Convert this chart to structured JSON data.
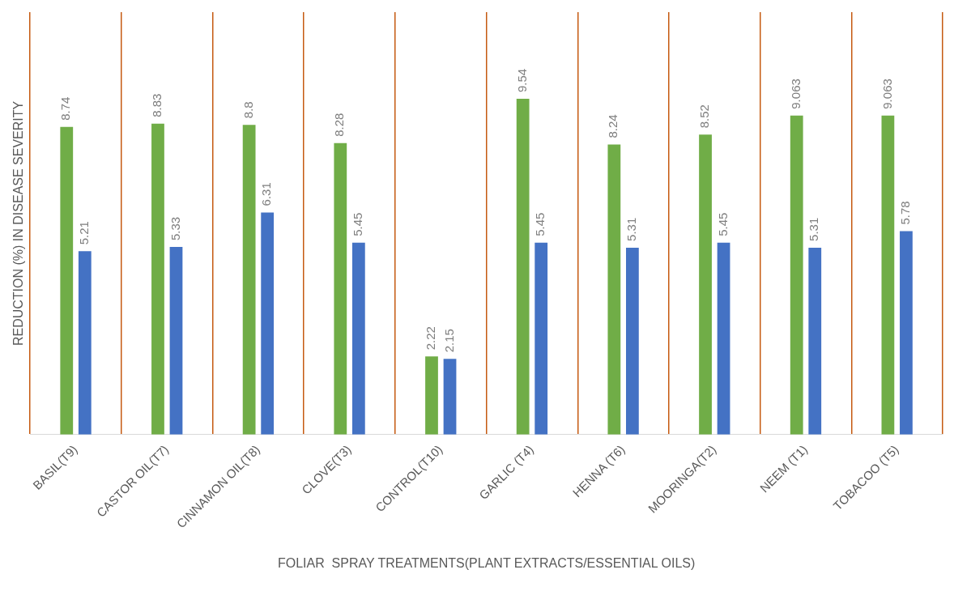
{
  "chart_data": {
    "type": "bar",
    "xlabel": "FOLIAR  SPRAY TREATMENTS(PLANT EXTRACTS/ESSENTIAL OILS)",
    "ylabel": "REDUCTION (%) IN DISEASE SEVERITY",
    "categories": [
      "BASIL(T9)",
      "CASTOR OIL(T7)",
      "CINNAMON OIL(T8)",
      "CLOVE(T3)",
      "CONTROL(T10)",
      "GARLIC (T4)",
      "HENNA (T6)",
      "MOORINGA(T2)",
      "NEEM (T1)",
      "TOBACOO (T5)"
    ],
    "series": [
      {
        "color": "#70ad47",
        "values": [
          8.74,
          8.83,
          8.8,
          8.28,
          2.22,
          9.54,
          8.24,
          8.52,
          9.063,
          9.063
        ]
      },
      {
        "color": "#4472c4",
        "values": [
          5.21,
          5.33,
          6.31,
          5.45,
          2.15,
          5.45,
          5.31,
          5.45,
          5.31,
          5.78
        ]
      }
    ],
    "data_labels": true,
    "grid": "x",
    "tick_labels": "x",
    "legend": false
  }
}
